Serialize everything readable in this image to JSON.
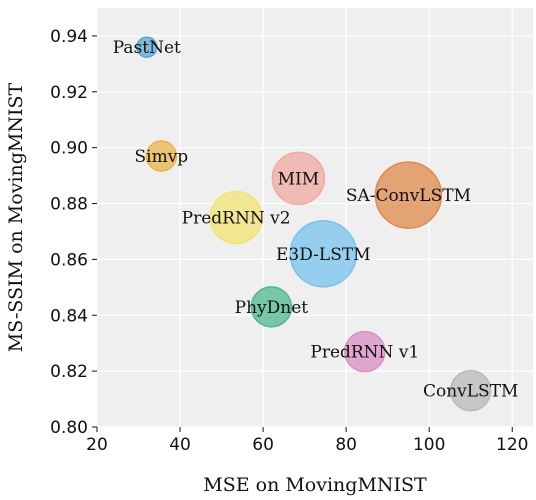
{
  "chart_data": {
    "type": "scatter",
    "title": "",
    "xlabel": "MSE on MovingMNIST",
    "ylabel": "MS-SSIM on MovingMNIST",
    "xlim": [
      20,
      125
    ],
    "ylim": [
      0.8,
      0.95
    ],
    "xticks": [
      20,
      40,
      60,
      80,
      100,
      120
    ],
    "yticks": [
      0.8,
      0.82,
      0.84,
      0.86,
      0.88,
      0.9,
      0.92,
      0.94
    ],
    "grid": true,
    "legend": "none",
    "points": [
      {
        "label": "PastNet",
        "x": 32.0,
        "y": 0.936,
        "size": 1,
        "color": "#5aa7d6"
      },
      {
        "label": "Simvp",
        "x": 35.5,
        "y": 0.897,
        "size": 2,
        "color": "#e8b54a"
      },
      {
        "label": "MIM",
        "x": 68.5,
        "y": 0.889,
        "size": 4,
        "color": "#f0a9a0"
      },
      {
        "label": "SA-ConvLSTM",
        "x": 95.0,
        "y": 0.883,
        "size": 6,
        "color": "#e08a4a"
      },
      {
        "label": "PredRNN v2",
        "x": 53.5,
        "y": 0.875,
        "size": 4,
        "color": "#f2e470"
      },
      {
        "label": "E3D-LSTM",
        "x": 74.5,
        "y": 0.862,
        "size": 6,
        "color": "#77c3ee"
      },
      {
        "label": "PhyDnet",
        "x": 62.0,
        "y": 0.843,
        "size": 3,
        "color": "#4fb88e"
      },
      {
        "label": "PredRNN v1",
        "x": 84.5,
        "y": 0.827,
        "size": 3,
        "color": "#da8fc4"
      },
      {
        "label": "ConvLSTM",
        "x": 110.0,
        "y": 0.813,
        "size": 3,
        "color": "#b9b9b9"
      }
    ]
  }
}
